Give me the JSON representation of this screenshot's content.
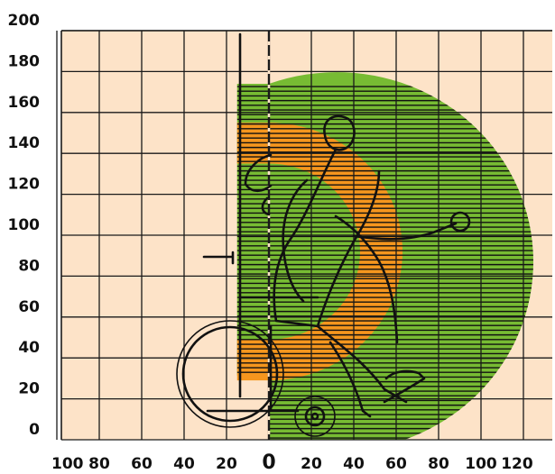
{
  "figure": {
    "colors": {
      "background": "#fde3c8",
      "grid": "#1a1a1a",
      "outer_zone": "#77bb33",
      "inner_zone": "#f5961e",
      "hatch": "#111111",
      "figure_line": "#111111"
    },
    "zones": {
      "outer_radius": 82,
      "inner_outer_radius": 63,
      "inner_inner_radius": 43,
      "center": [
        0,
        92
      ],
      "inner_left": -15,
      "outer_left": -15
    },
    "y_axis": {
      "range": [
        0,
        200
      ],
      "step": 20,
      "tick_labels": [
        "0",
        "20",
        "40",
        "60",
        "80",
        "100",
        "120",
        "140",
        "160",
        "180",
        "200"
      ]
    },
    "x_axis": {
      "range": [
        -100,
        120
      ],
      "step": 20,
      "left_tick_labels": [
        "100",
        "80",
        "60",
        "40",
        "20"
      ],
      "zero_label": "0",
      "right_tick_labels": [
        "20",
        "40",
        "60",
        "80",
        "100",
        "120"
      ]
    }
  }
}
